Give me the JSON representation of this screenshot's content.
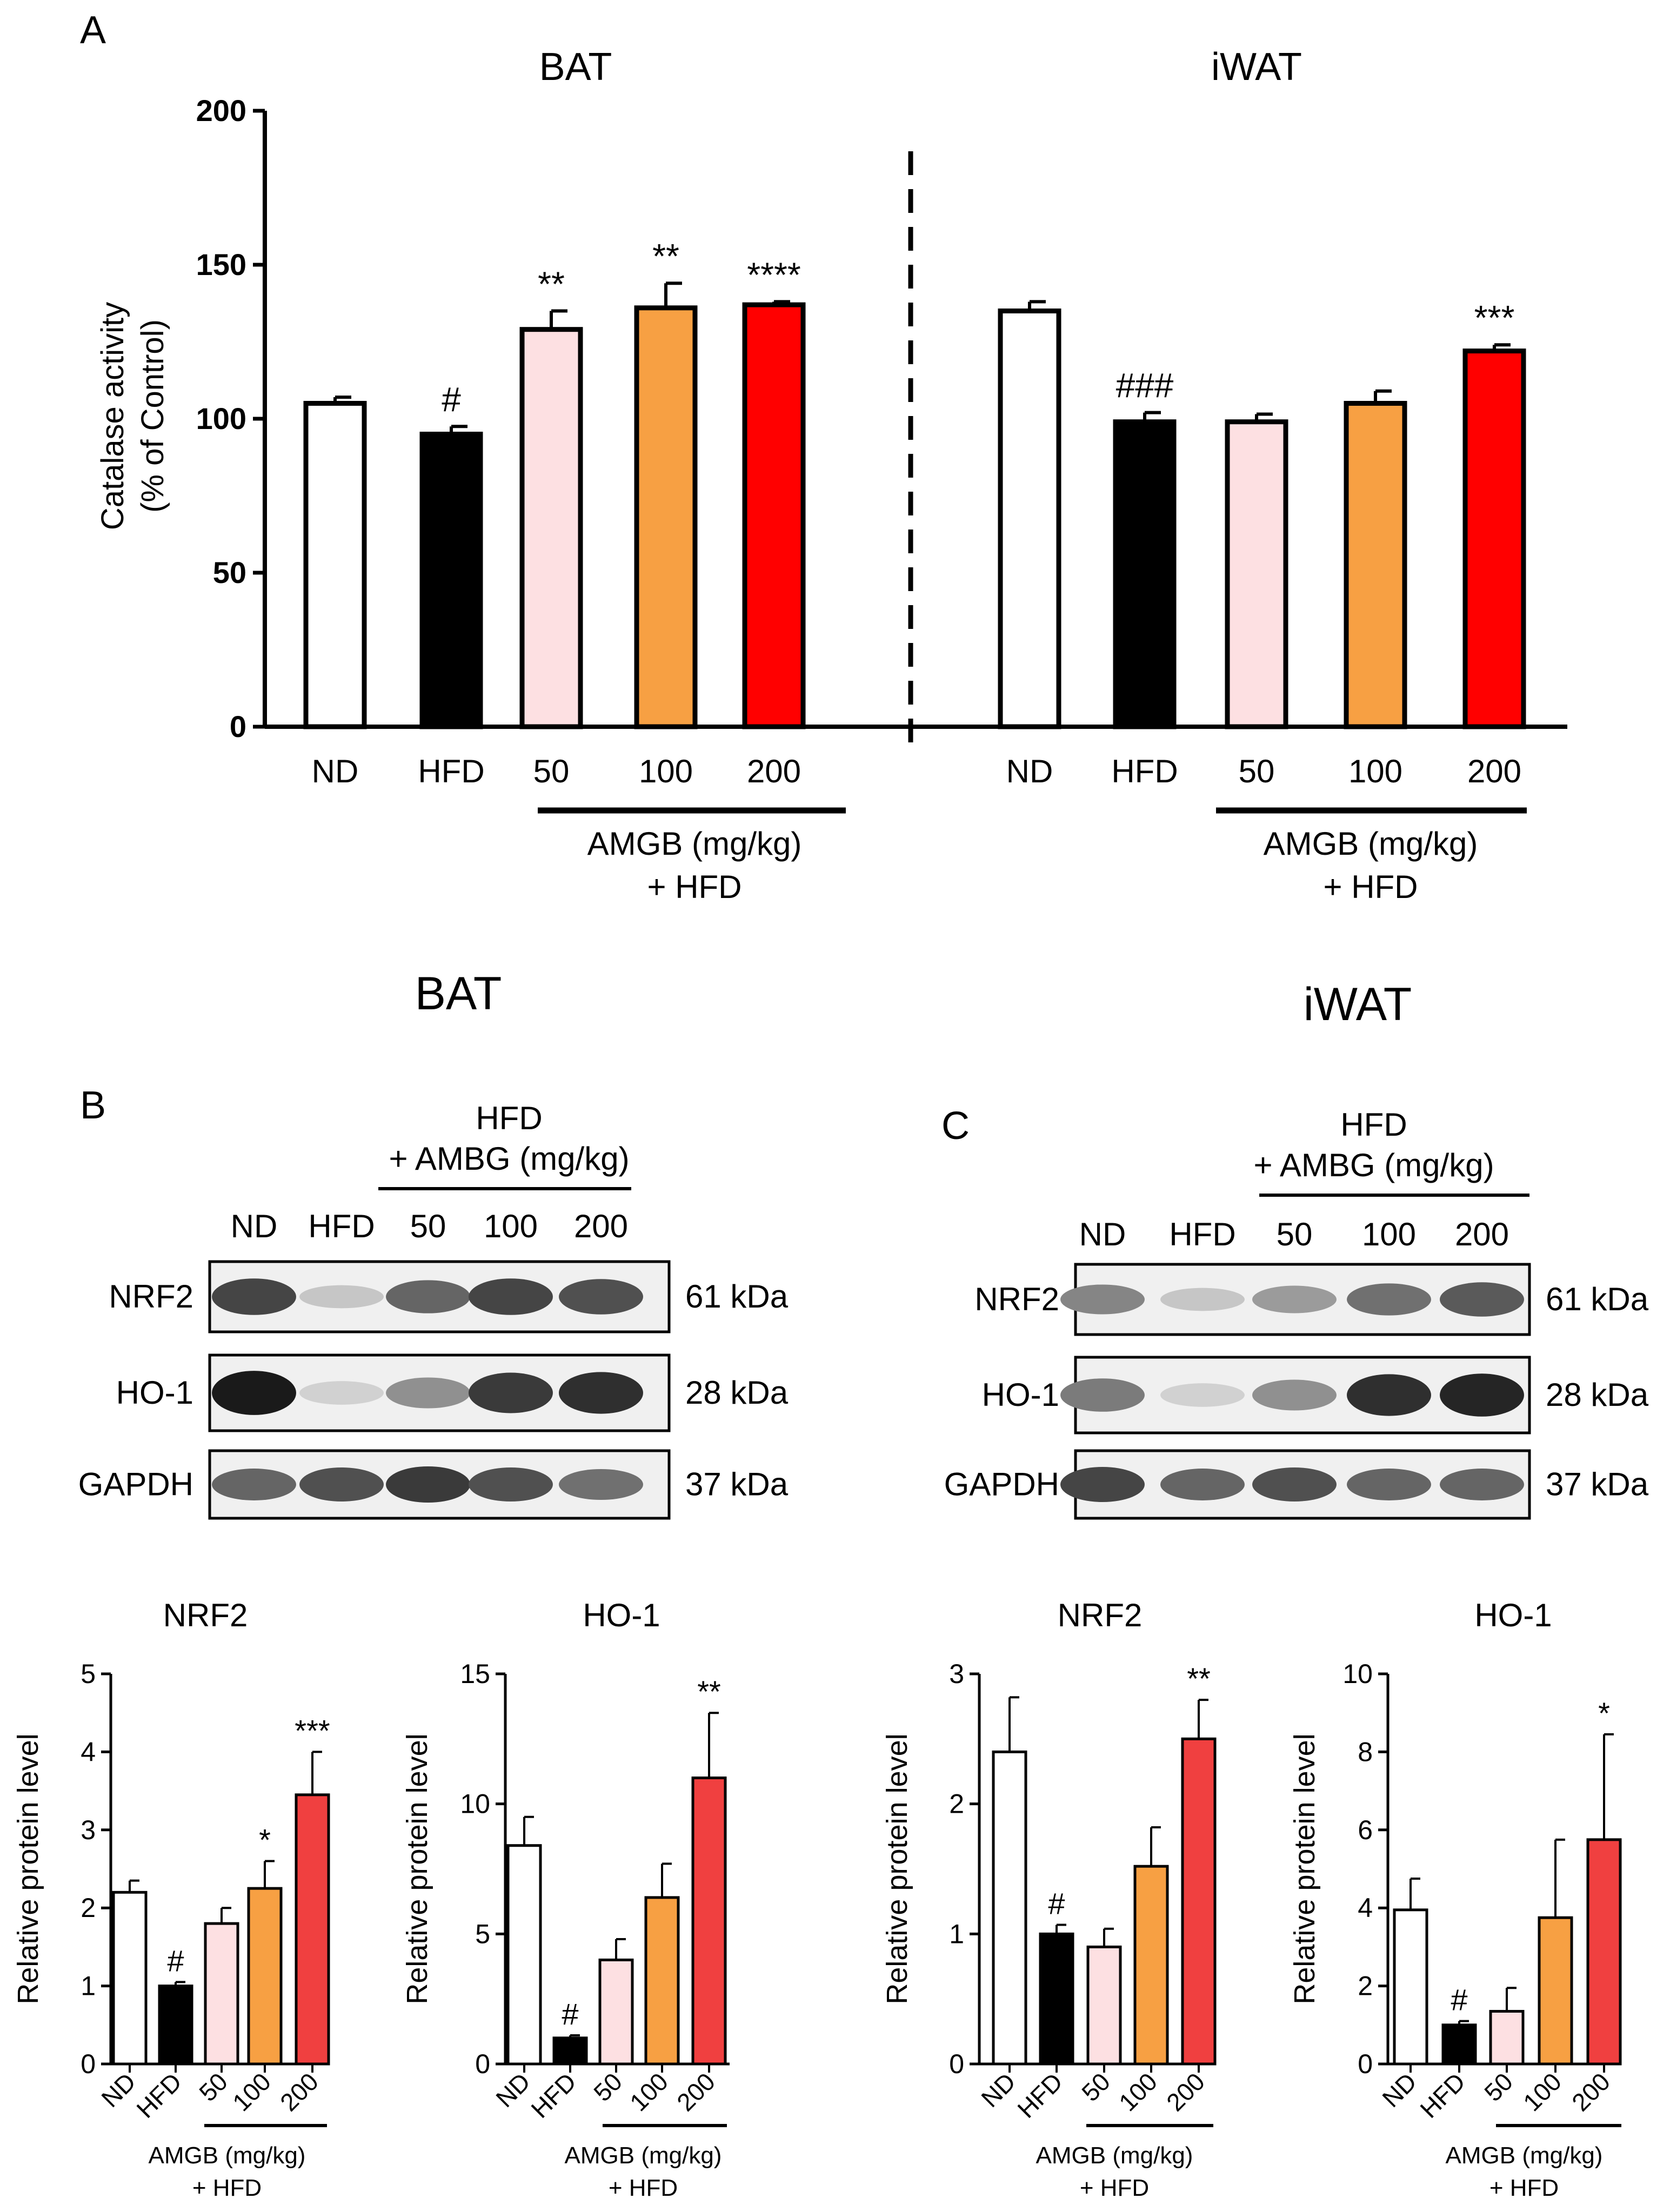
{
  "panel_letters": {
    "a": "A",
    "b": "B",
    "c": "C"
  },
  "colors": {
    "nd": "#ffffff",
    "hfd": "#000000",
    "d50": "#fde0e2",
    "d100": "#f7a043",
    "d200_a": "#ff0000",
    "d200_small": "#f04040"
  },
  "panel_a": {
    "ylabel_line1": "Catalase activity",
    "ylabel_line2": "(% of Control)",
    "group_label_line1": "AMGB  (mg/kg)",
    "group_label_line2": "+ HFD"
  },
  "western": {
    "bat_title": "BAT",
    "iwat_title": "iWAT",
    "group_line1": "HFD",
    "group_line2": "+ AMBG (mg/kg)",
    "lanes": [
      "ND",
      "HFD",
      "50",
      "100",
      "200"
    ],
    "bands": [
      {
        "label": "NRF2",
        "kda": "61 kDa"
      },
      {
        "label": "HO-1",
        "kda": "28 kDa"
      },
      {
        "label": "GAPDH",
        "kda": "37 kDa"
      }
    ]
  },
  "small_charts_group": {
    "line1": "AMGB (mg/kg)",
    "line2": "+ HFD"
  },
  "chart_data": [
    {
      "id": "A-BAT",
      "type": "bar",
      "title": "BAT",
      "categories": [
        "ND",
        "HFD",
        "50",
        "100",
        "200"
      ],
      "values": [
        105,
        95,
        129,
        136,
        137
      ],
      "errors": [
        2,
        2.5,
        6,
        8,
        1
      ],
      "significance": [
        "",
        "#",
        "**",
        "**",
        "****"
      ],
      "ylabel": "Catalase activity (% of Control)",
      "ylim": [
        0,
        200
      ],
      "yticks": [
        0,
        50,
        100,
        150,
        200
      ]
    },
    {
      "id": "A-iWAT",
      "type": "bar",
      "title": "iWAT",
      "categories": [
        "ND",
        "HFD",
        "50",
        "100",
        "200"
      ],
      "values": [
        135,
        99,
        99,
        105,
        122
      ],
      "errors": [
        3,
        3,
        2.5,
        4,
        2
      ],
      "significance": [
        "",
        "###",
        "",
        "",
        "***"
      ],
      "ylabel": "Catalase activity (% of Control)",
      "ylim": [
        0,
        200
      ],
      "yticks": [
        0,
        50,
        100,
        150,
        200
      ]
    },
    {
      "id": "B-NRF2",
      "type": "bar",
      "title": "NRF2",
      "categories": [
        "ND",
        "HFD",
        "50",
        "100",
        "200"
      ],
      "values": [
        2.2,
        1.0,
        1.8,
        2.25,
        3.45
      ],
      "errors": [
        0.15,
        0.05,
        0.2,
        0.35,
        0.55
      ],
      "significance": [
        "",
        "#",
        "",
        "*",
        "***"
      ],
      "ylabel": "Relative protein level",
      "ylim": [
        0,
        5
      ],
      "yticks": [
        0,
        1,
        2,
        3,
        4,
        5
      ]
    },
    {
      "id": "B-HO-1",
      "type": "bar",
      "title": "HO-1",
      "categories": [
        "ND",
        "HFD",
        "50",
        "100",
        "200"
      ],
      "values": [
        8.4,
        1.0,
        4.0,
        6.4,
        11.0
      ],
      "errors": [
        1.1,
        0.1,
        0.8,
        1.3,
        2.5
      ],
      "significance": [
        "",
        "#",
        "",
        "",
        "**"
      ],
      "ylabel": "Relative protein level",
      "ylim": [
        0,
        15
      ],
      "yticks": [
        0,
        5,
        10,
        15
      ]
    },
    {
      "id": "C-NRF2",
      "type": "bar",
      "title": "NRF2",
      "categories": [
        "ND",
        "HFD",
        "50",
        "100",
        "200"
      ],
      "values": [
        2.4,
        1.0,
        0.9,
        1.52,
        2.5
      ],
      "errors": [
        0.42,
        0.07,
        0.14,
        0.3,
        0.3
      ],
      "significance": [
        "",
        "#",
        "",
        "",
        "**"
      ],
      "ylabel": "Relative protein level",
      "ylim": [
        0,
        3
      ],
      "yticks": [
        0,
        1,
        2,
        3
      ]
    },
    {
      "id": "C-HO-1",
      "type": "bar",
      "title": "HO-1",
      "categories": [
        "ND",
        "HFD",
        "50",
        "100",
        "200"
      ],
      "values": [
        3.95,
        1.0,
        1.35,
        3.75,
        5.75
      ],
      "errors": [
        0.8,
        0.1,
        0.6,
        2.0,
        2.7
      ],
      "significance": [
        "",
        "#",
        "",
        "",
        "*"
      ],
      "ylabel": "Relative protein level",
      "ylim": [
        0,
        10
      ],
      "yticks": [
        0,
        2,
        4,
        6,
        8,
        10
      ]
    }
  ]
}
